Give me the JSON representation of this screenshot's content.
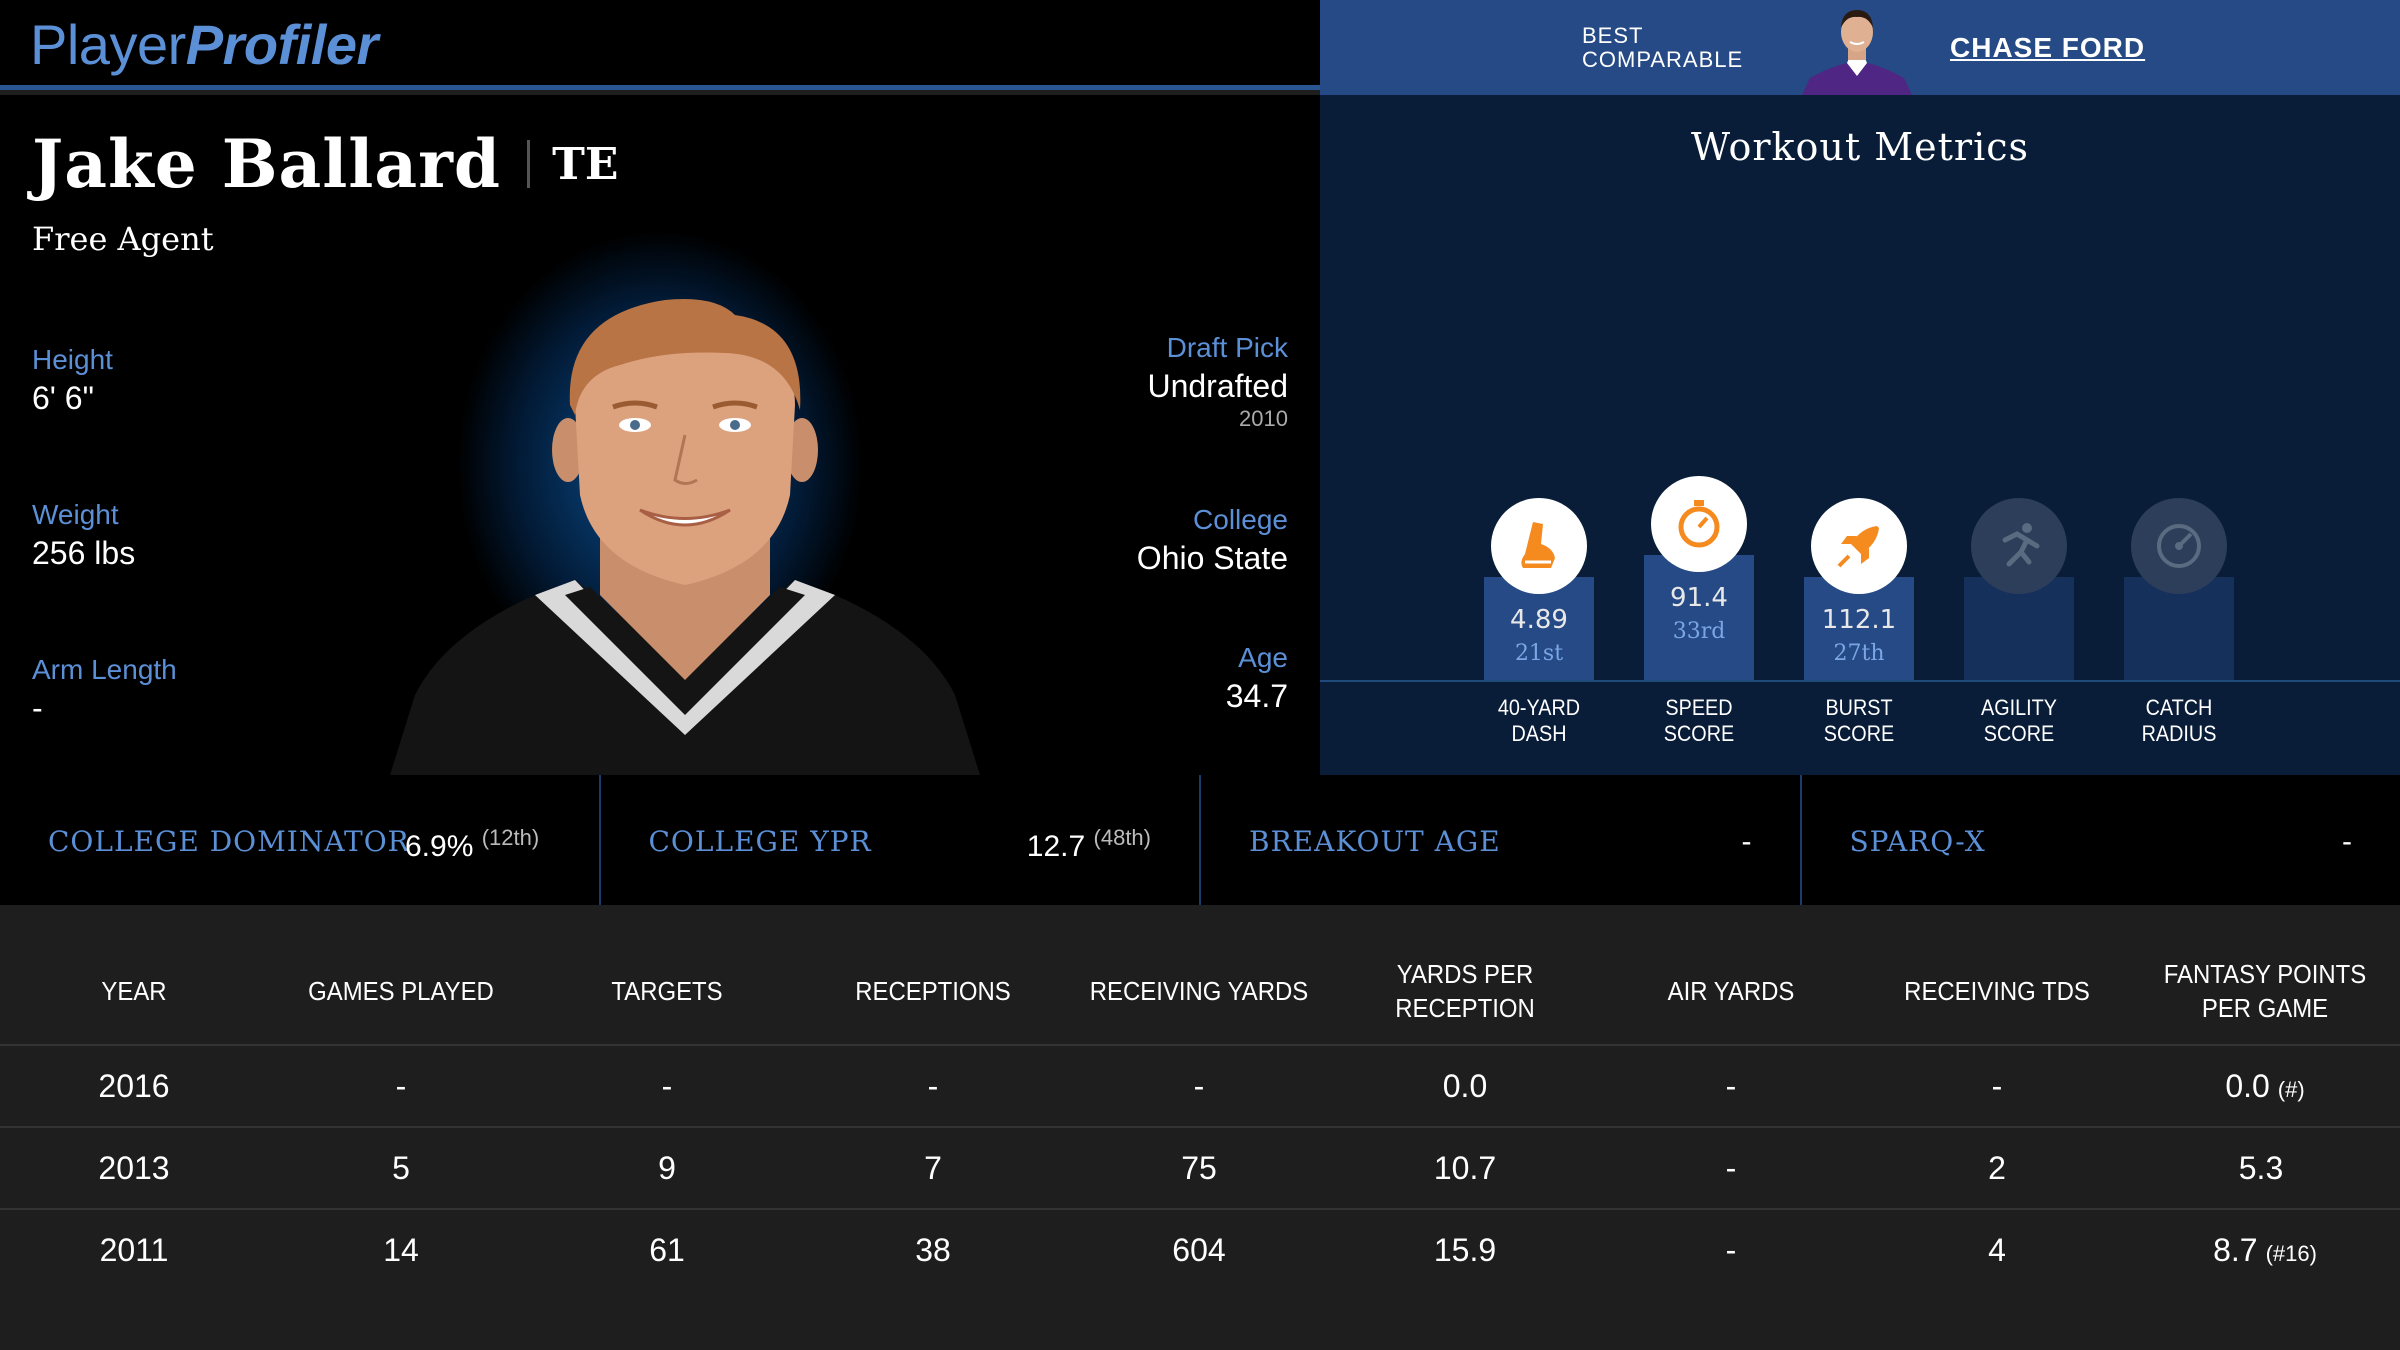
{
  "app": {
    "logo_part1": "Player",
    "logo_part2": "Profiler"
  },
  "player": {
    "name": "Jake Ballard",
    "position": "TE",
    "team": "Free Agent",
    "height_label": "Height",
    "height": "6' 6\"",
    "weight_label": "Weight",
    "weight": "256 lbs",
    "arm_label": "Arm Length",
    "arm": "-",
    "draft_label": "Draft Pick",
    "draft": "Undrafted",
    "draft_year": "2010",
    "college_label": "College",
    "college": "Ohio State",
    "age_label": "Age",
    "age": "34.7"
  },
  "comparable": {
    "label_line1": "BEST",
    "label_line2": "COMPARABLE",
    "name": "CHASE FORD"
  },
  "workout": {
    "title": "Workout Metrics",
    "metrics": [
      {
        "label1": "40-YARD",
        "label2": "DASH",
        "value": "4.89",
        "rank": "21st",
        "icon": "shoe-icon"
      },
      {
        "label1": "SPEED",
        "label2": "SCORE",
        "value": "91.4",
        "rank": "33rd",
        "icon": "stopwatch-icon"
      },
      {
        "label1": "BURST",
        "label2": "SCORE",
        "value": "112.1",
        "rank": "27th",
        "icon": "rocket-icon"
      },
      {
        "label1": "AGILITY",
        "label2": "SCORE",
        "value": "",
        "rank": "",
        "icon": "runner-icon"
      },
      {
        "label1": "CATCH",
        "label2": "RADIUS",
        "value": "",
        "rank": "",
        "icon": "target-icon"
      }
    ]
  },
  "strip": [
    {
      "label": "COLLEGE DOMINATOR",
      "value": "6.9%",
      "rank": "(12th)"
    },
    {
      "label": "COLLEGE YPR",
      "value": "12.7",
      "rank": "(48th)"
    },
    {
      "label": "BREAKOUT AGE",
      "value": "-",
      "rank": ""
    },
    {
      "label": "SPARQ-X",
      "value": "-",
      "rank": ""
    }
  ],
  "table": {
    "headers": [
      "YEAR",
      "GAMES PLAYED",
      "TARGETS",
      "RECEPTIONS",
      "RECEIVING YARDS",
      "YARDS PER RECEPTION",
      "AIR YARDS",
      "RECEIVING TDS",
      "FANTASY POINTS PER GAME"
    ],
    "rows": [
      {
        "year": "2016",
        "games": "-",
        "targets": "-",
        "receptions": "-",
        "yards": "-",
        "ypr": "0.0",
        "air": "-",
        "tds": "-",
        "fpg": "0.0",
        "fpg_rank": "(#)"
      },
      {
        "year": "2013",
        "games": "5",
        "targets": "9",
        "receptions": "7",
        "yards": "75",
        "ypr": "10.7",
        "air": "-",
        "tds": "2",
        "fpg": "5.3",
        "fpg_rank": ""
      },
      {
        "year": "2011",
        "games": "14",
        "targets": "61",
        "receptions": "38",
        "yards": "604",
        "ypr": "15.9",
        "air": "-",
        "tds": "4",
        "fpg": "8.7",
        "fpg_rank": "(#16)"
      }
    ]
  }
}
